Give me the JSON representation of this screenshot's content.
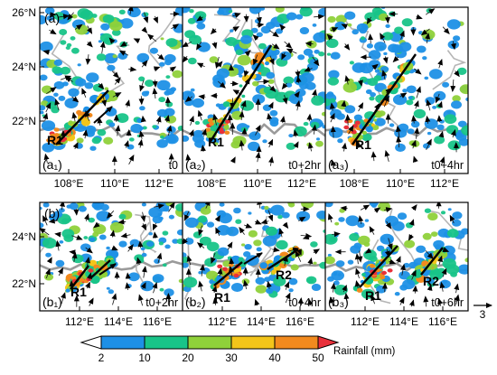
{
  "figure": {
    "row_a": {
      "label": "(a)",
      "lat_ticks": [
        "26°N",
        "24°N",
        "22°N"
      ],
      "lon_ticks": [
        "108°E",
        "110°E",
        "112°E"
      ],
      "panels": [
        {
          "label": "(a₁)",
          "time": "t0",
          "rainband": "R1"
        },
        {
          "label": "(a₂)",
          "time": "t0+2hr",
          "rainband": "R1"
        },
        {
          "label": "(a₃)",
          "time": "t0+4hr",
          "rainband": "R1"
        }
      ]
    },
    "row_b": {
      "label": "(b)",
      "lat_ticks": [
        "24°N",
        "22°N"
      ],
      "lon_ticks": [
        "112°E",
        "114°E",
        "116°E"
      ],
      "panels": [
        {
          "label": "(b₁)",
          "time": "t0+2hr",
          "rainband": "R1"
        },
        {
          "label": "(b₂)",
          "time": "t0+4hr",
          "rainbands": [
            "R1",
            "R2"
          ]
        },
        {
          "label": "(b₃)",
          "time": "t0+6hr",
          "rainbands": [
            "R1",
            "R2"
          ]
        }
      ]
    },
    "vector_reference": "3",
    "colorbar": {
      "title": "Rainfall (mm)",
      "ticks": [
        "2",
        "10",
        "20",
        "30",
        "40",
        "50"
      ],
      "colors": [
        "#ffffff",
        "#1e90e6",
        "#18c488",
        "#8fd13a",
        "#f3c51a",
        "#f28a1e",
        "#e8303a"
      ]
    }
  }
}
